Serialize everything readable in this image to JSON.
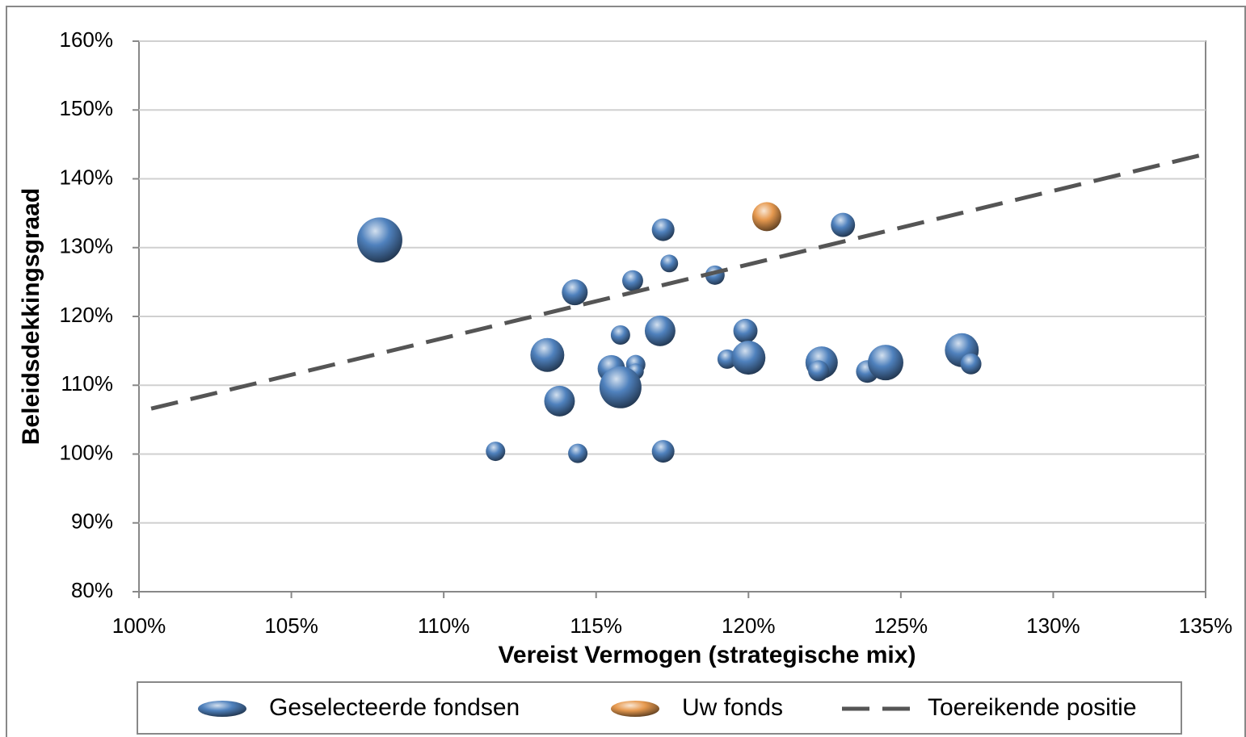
{
  "chart_data": {
    "type": "bubble",
    "x_label": "Vereist Vermogen (strategische mix)",
    "y_label": "Beleidsdekkingsgraad",
    "xlim": [
      100,
      135
    ],
    "xticks": [
      {
        "value": 100,
        "label": "100%"
      },
      {
        "value": 105,
        "label": "105%"
      },
      {
        "value": 110,
        "label": "110%"
      },
      {
        "value": 115,
        "label": "115%"
      },
      {
        "value": 120,
        "label": "120%"
      },
      {
        "value": 125,
        "label": "125%"
      },
      {
        "value": 130,
        "label": "130%"
      },
      {
        "value": 135,
        "label": "135%"
      }
    ],
    "ylim": [
      80,
      160
    ],
    "yticks": [
      {
        "value": 80,
        "label": "80%"
      },
      {
        "value": 90,
        "label": "90%"
      },
      {
        "value": 100,
        "label": "100%"
      },
      {
        "value": 110,
        "label": "110%"
      },
      {
        "value": 120,
        "label": "120%"
      },
      {
        "value": 130,
        "label": "130%"
      },
      {
        "value": 140,
        "label": "140%"
      },
      {
        "value": 150,
        "label": "150%"
      },
      {
        "value": 160,
        "label": "160%"
      }
    ],
    "grid": true,
    "legend": "bottom",
    "series": [
      {
        "name": "Geselecteerde fondsen",
        "type": "bubble",
        "color": "#4f81bd",
        "x": [
          107.9,
          117.2,
          117.4,
          123.1,
          118.9,
          116.2,
          114.3,
          115.8,
          117.1,
          119.9,
          113.4,
          119.3,
          120.0,
          115.5,
          116.3,
          116.3,
          115.8,
          113.8,
          122.4,
          122.3,
          123.9,
          124.5,
          127.0,
          127.3,
          111.7,
          114.4,
          117.2
        ],
        "values": [
          131.1,
          132.6,
          127.7,
          133.3,
          126.0,
          125.2,
          123.5,
          117.3,
          117.9,
          117.9,
          114.4,
          113.8,
          114.0,
          112.4,
          113.0,
          112.0,
          109.7,
          107.7,
          113.3,
          112.1,
          112.0,
          113.3,
          115.1,
          113.1,
          100.4,
          100.1,
          100.4
        ],
        "sizes": [
          196,
          49,
          30,
          56,
          36,
          42,
          64,
          36,
          90,
          56,
          110,
          36,
          110,
          72,
          36,
          25,
          169,
          90,
          100,
          42,
          49,
          121,
          110,
          42,
          36,
          36,
          49
        ]
      },
      {
        "name": "Uw fonds",
        "type": "bubble",
        "color": "#e6994f",
        "x": [
          120.6
        ],
        "values": [
          134.5
        ],
        "sizes": [
          81
        ]
      },
      {
        "name": "Toereikende positie",
        "type": "line",
        "color": "#555555",
        "dash": true,
        "x": [
          100.4,
          135
        ],
        "values": [
          106.6,
          143.6
        ]
      }
    ]
  }
}
